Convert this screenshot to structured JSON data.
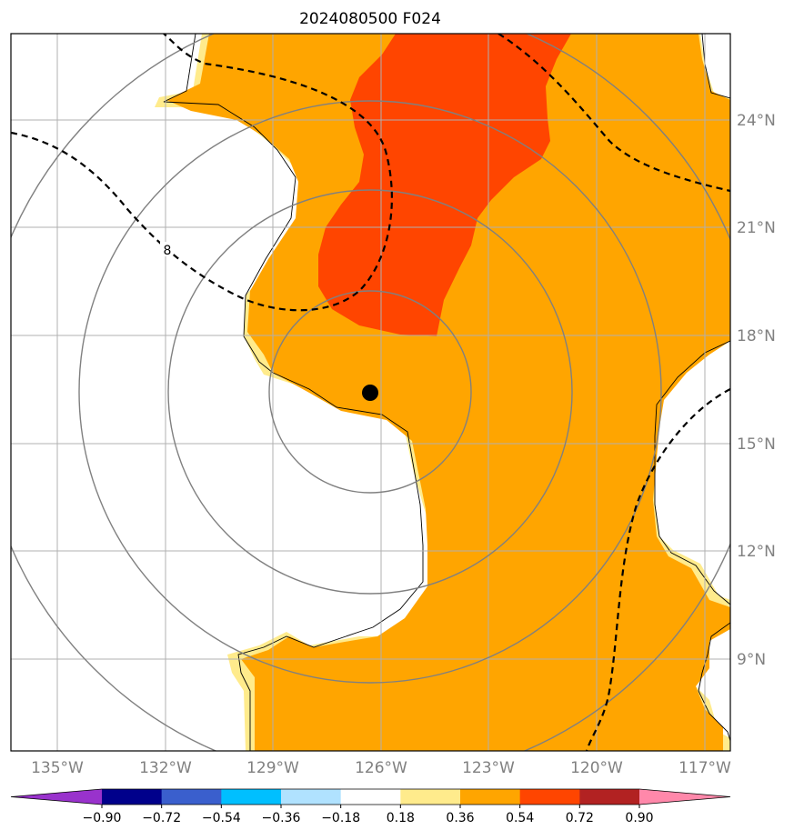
{
  "map": {
    "title": "2024080500 F024",
    "lon_labels": [
      "135°W",
      "132°W",
      "129°W",
      "126°W",
      "123°W",
      "120°W",
      "117°W"
    ],
    "lat_labels": [
      "24°N",
      "21°N",
      "18°N",
      "15°N",
      "12°N",
      "9°N"
    ],
    "contour_label": "8",
    "storm_center": {
      "lon": "126°W",
      "lat": "16.4°N"
    },
    "colors": {
      "orange": "#ffa500",
      "red_orange": "#ff4500",
      "light_yellow": "#ffeb8c",
      "grid": "#a0a0a0",
      "rings": "#808080",
      "contour": "#000000"
    }
  },
  "colorbar": {
    "ticks": [
      "−0.90",
      "−0.72",
      "−0.54",
      "−0.36",
      "−0.18",
      "0.18",
      "0.36",
      "0.54",
      "0.72",
      "0.90"
    ],
    "colors": [
      "#9932cc",
      "#00008b",
      "#3a5fcd",
      "#00bfff",
      "#b0e2ff",
      "#ffffff",
      "#ffeb8c",
      "#ffa500",
      "#ff4500",
      "#b22222",
      "#ff88aa"
    ]
  }
}
